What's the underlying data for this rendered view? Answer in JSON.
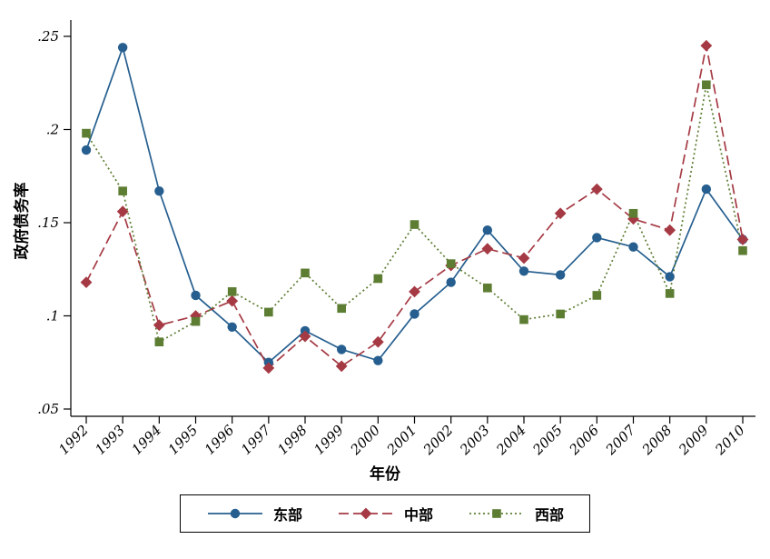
{
  "figure": {
    "background": "#ffffff",
    "axis_color": "#000000"
  },
  "chart_data": {
    "type": "line",
    "title": "",
    "xlabel": "年份",
    "ylabel": "政府债务率",
    "x": [
      1992,
      1993,
      1994,
      1995,
      1996,
      1997,
      1998,
      1999,
      2000,
      2001,
      2002,
      2003,
      2004,
      2005,
      2006,
      2007,
      2008,
      2009,
      2010
    ],
    "series": [
      {
        "name": "东部",
        "color": "#265f8f",
        "line_style": "solid",
        "marker": "circle",
        "values": [
          0.189,
          0.244,
          0.167,
          0.111,
          0.094,
          0.075,
          0.092,
          0.082,
          0.076,
          0.101,
          0.118,
          0.146,
          0.124,
          0.122,
          0.142,
          0.137,
          0.121,
          0.168,
          0.141
        ]
      },
      {
        "name": "中部",
        "color": "#a53a44",
        "line_style": "dashed",
        "marker": "diamond",
        "values": [
          0.118,
          0.156,
          0.095,
          0.1,
          0.108,
          0.072,
          0.089,
          0.073,
          0.086,
          0.113,
          0.127,
          0.136,
          0.131,
          0.155,
          0.168,
          0.152,
          0.146,
          0.245,
          0.141
        ]
      },
      {
        "name": "西部",
        "color": "#5d7d33",
        "line_style": "dotted",
        "marker": "square",
        "values": [
          0.198,
          0.167,
          0.086,
          0.097,
          0.113,
          0.102,
          0.123,
          0.104,
          0.12,
          0.149,
          0.128,
          0.115,
          0.098,
          0.101,
          0.111,
          0.155,
          0.112,
          0.224,
          0.135
        ]
      }
    ],
    "ylim": [
      0.05,
      0.25
    ],
    "yticks": [
      0.05,
      0.1,
      0.15,
      0.2,
      0.25
    ],
    "ytick_labels": [
      ".05",
      ".1",
      ".15",
      ".2",
      ".25"
    ],
    "grid": "off",
    "legend_position": "bottom"
  }
}
